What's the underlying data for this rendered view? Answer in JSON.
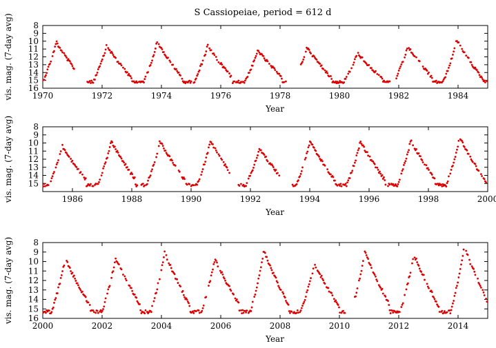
{
  "title": "S Cassiopeiae, period = 612 d",
  "colors": {
    "points": "#dd0000",
    "axis": "#000000",
    "background": "#ffffff"
  },
  "chart_data": [
    {
      "type": "scatter",
      "xlabel": "Year",
      "ylabel": "vis. mag. (7-day avg)",
      "xlim": [
        1970,
        1985
      ],
      "ylim": [
        16,
        8
      ],
      "y_inverted": true,
      "grid": false,
      "xticks": [
        1970,
        1972,
        1974,
        1976,
        1978,
        1980,
        1982,
        1984
      ],
      "yticks": [
        8,
        9,
        10,
        11,
        12,
        13,
        14,
        15,
        16
      ],
      "series": [
        {
          "maxima": [
            {
              "t": 1970.45,
              "mag": 10.0
            },
            {
              "t": 1972.15,
              "mag": 10.5
            },
            {
              "t": 1973.85,
              "mag": 10.0
            },
            {
              "t": 1975.55,
              "mag": 10.5
            },
            {
              "t": 1977.25,
              "mag": 11.1
            },
            {
              "t": 1978.9,
              "mag": 10.7
            },
            {
              "t": 1980.6,
              "mag": 11.4
            },
            {
              "t": 1982.3,
              "mag": 10.6
            },
            {
              "t": 1983.95,
              "mag": 9.8
            }
          ],
          "minimum_mag": 15.2,
          "gaps": [
            [
              1971.1,
              1971.5
            ],
            [
              1978.2,
              1978.7
            ],
            [
              1981.7,
              1981.9
            ]
          ]
        }
      ]
    },
    {
      "type": "scatter",
      "xlabel": "Year",
      "ylabel": "vis. mag. (7-day avg)",
      "xlim": [
        1985,
        2000
      ],
      "ylim": [
        16,
        8
      ],
      "y_inverted": true,
      "grid": false,
      "xticks": [
        1986,
        1988,
        1990,
        1992,
        1994,
        1996,
        1998,
        2000
      ],
      "yticks": [
        8,
        9,
        10,
        11,
        12,
        13,
        14,
        15
      ],
      "series": [
        {
          "maxima": [
            {
              "t": 1985.65,
              "mag": 10.3
            },
            {
              "t": 1987.3,
              "mag": 9.7
            },
            {
              "t": 1988.95,
              "mag": 9.7
            },
            {
              "t": 1990.65,
              "mag": 9.6
            },
            {
              "t": 1992.3,
              "mag": 10.6
            },
            {
              "t": 1994.0,
              "mag": 9.7
            },
            {
              "t": 1995.7,
              "mag": 9.7
            },
            {
              "t": 1997.4,
              "mag": 9.6
            },
            {
              "t": 1999.05,
              "mag": 9.2
            }
          ],
          "minimum_mag": 15.2,
          "gaps": [
            [
              1993.0,
              1993.4
            ],
            [
              1991.3,
              1991.6
            ]
          ]
        }
      ]
    },
    {
      "type": "scatter",
      "xlabel": "Year",
      "ylabel": "vis. mag. (7-day avg)",
      "xlim": [
        2000,
        2015
      ],
      "ylim": [
        16,
        8
      ],
      "y_inverted": true,
      "grid": false,
      "xticks": [
        2000,
        2002,
        2004,
        2006,
        2008,
        2010,
        2012,
        2014
      ],
      "yticks": [
        8,
        9,
        10,
        11,
        12,
        13,
        14,
        15,
        16
      ],
      "series": [
        {
          "maxima": [
            {
              "t": 2000.75,
              "mag": 9.6
            },
            {
              "t": 2002.45,
              "mag": 9.5
            },
            {
              "t": 2004.1,
              "mag": 8.9
            },
            {
              "t": 2005.8,
              "mag": 9.6
            },
            {
              "t": 2007.45,
              "mag": 8.8
            },
            {
              "t": 2009.15,
              "mag": 10.1
            },
            {
              "t": 2010.85,
              "mag": 8.8
            },
            {
              "t": 2012.5,
              "mag": 9.1
            },
            {
              "t": 2014.2,
              "mag": 8.3
            }
          ],
          "minimum_mag": 15.3,
          "gaps": [
            [
              2010.2,
              2010.5
            ]
          ]
        }
      ]
    }
  ]
}
